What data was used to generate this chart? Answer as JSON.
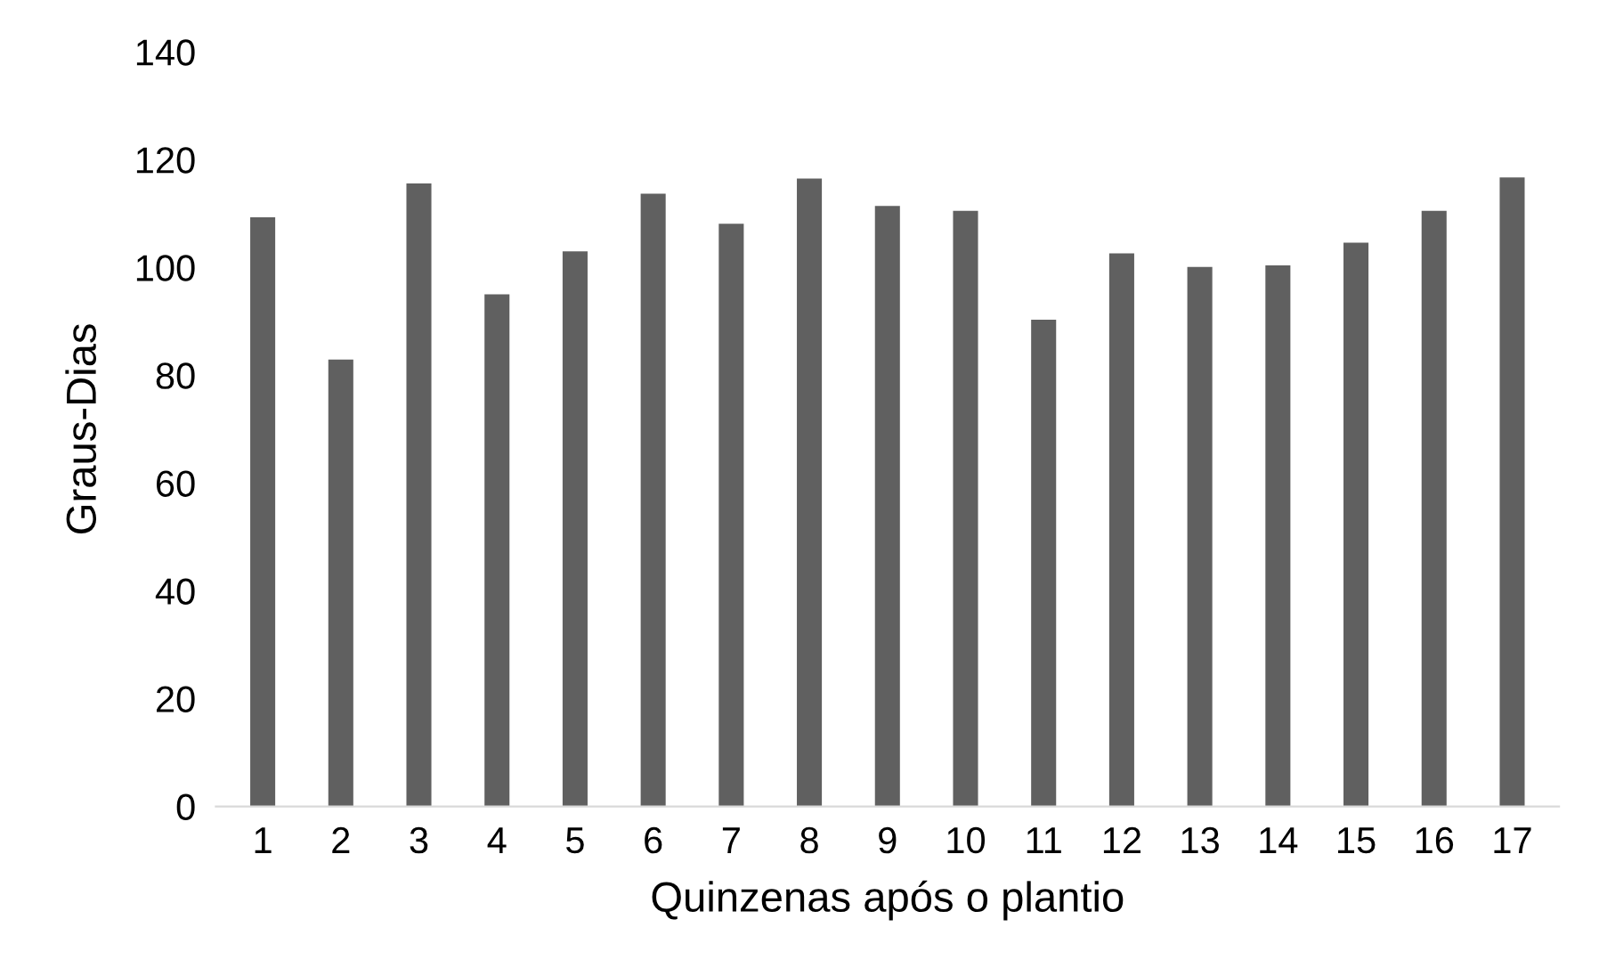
{
  "chart_data": {
    "type": "bar",
    "xlabel": "Quinzenas após o plantio",
    "ylabel": "Graus-Dias",
    "categories": [
      "1",
      "2",
      "3",
      "4",
      "5",
      "6",
      "7",
      "8",
      "9",
      "10",
      "11",
      "12",
      "13",
      "14",
      "15",
      "16",
      "17"
    ],
    "values": [
      109.3,
      82.9,
      115.6,
      95.0,
      103.0,
      113.7,
      108.1,
      116.5,
      111.4,
      110.5,
      90.3,
      102.6,
      100.1,
      100.4,
      104.6,
      110.5,
      116.7
    ],
    "color": "#606060",
    "ylim": [
      0,
      140
    ],
    "yticks": [
      0,
      20,
      40,
      60,
      80,
      100,
      120,
      140
    ],
    "grid": false
  }
}
